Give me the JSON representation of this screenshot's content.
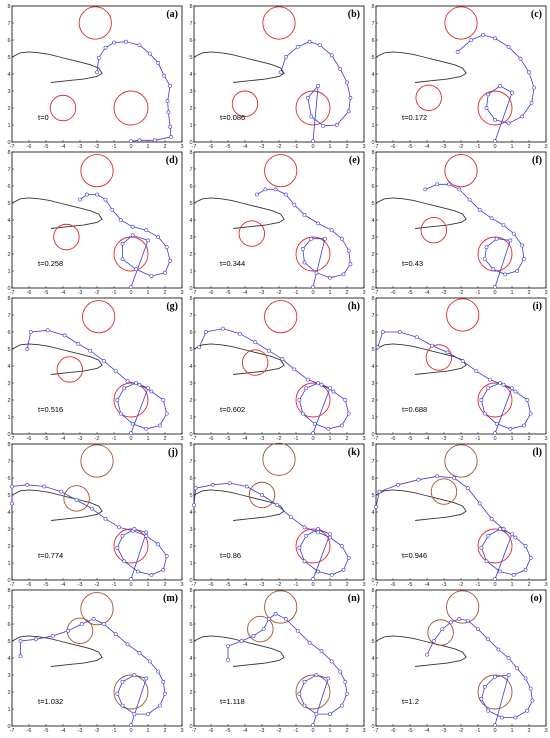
{
  "chart_data": {
    "type": "line",
    "layout": "5 rows x 3 columns small multiples",
    "shared_axes": {
      "xlim": [
        -7,
        3
      ],
      "ylim": [
        0,
        8
      ],
      "xticks": [
        -7,
        -6,
        -5,
        -4,
        -3,
        -2,
        -1,
        0,
        1,
        2,
        3
      ],
      "yticks": [
        0,
        1,
        2,
        3,
        4,
        5,
        6,
        7,
        8
      ],
      "grid": false
    },
    "colors": {
      "chain": "#3a3ad8",
      "obstacle_red": "#e0282a",
      "obstacle_brown": "#a0522d",
      "curve": "#333333",
      "frame": "#000000"
    },
    "target_curve": {
      "x": [
        -7,
        -6.5,
        -6,
        -5.4,
        -4.8,
        -4.2,
        -3.6,
        -3.0,
        -2.4,
        -1.9,
        -1.7,
        -2.0,
        -2.8,
        -3.8,
        -4.7
      ],
      "y": [
        5.0,
        5.25,
        5.3,
        5.25,
        5.15,
        5.0,
        4.85,
        4.7,
        4.55,
        4.35,
        4.05,
        3.85,
        3.7,
        3.6,
        3.5
      ]
    },
    "panels": [
      {
        "label": "(a)",
        "t": "t=0",
        "chain_x": [
          -2.0,
          -1.9,
          -1.5,
          -1.0,
          -0.3,
          0.5,
          1.1,
          1.6,
          1.95,
          2.3,
          2.15,
          2.2,
          2.3,
          2.35,
          1.4,
          0.5,
          0.0
        ],
        "chain_y": [
          4.1,
          4.95,
          5.55,
          5.85,
          5.9,
          5.7,
          5.2,
          4.65,
          3.9,
          3.3,
          2.4,
          1.75,
          0.9,
          0.3,
          0.1,
          0.1,
          0.05
        ],
        "circles": [
          {
            "x": -2.1,
            "y": 7.0,
            "r": 0.95,
            "c": "red"
          },
          {
            "x": -4.0,
            "y": 2.0,
            "r": 0.75,
            "c": "red"
          },
          {
            "x": 0.0,
            "y": 2.0,
            "r": 1.0,
            "c": "red"
          }
        ]
      },
      {
        "label": "(b)",
        "t": "t=0.086",
        "chain_x": [
          -1.9,
          -1.6,
          -0.9,
          -0.2,
          0.4,
          1.1,
          1.6,
          2.0,
          2.2,
          2.1,
          1.4,
          0.6,
          -0.1,
          -0.3,
          0.3,
          0.0
        ],
        "chain_y": [
          4.1,
          5.0,
          5.6,
          5.9,
          5.7,
          5.1,
          4.3,
          3.5,
          2.6,
          1.8,
          1.0,
          0.95,
          1.5,
          2.6,
          3.3,
          0.05
        ],
        "circles": [
          {
            "x": -2.0,
            "y": 7.0,
            "r": 0.95,
            "c": "red"
          },
          {
            "x": -4.0,
            "y": 2.25,
            "r": 0.75,
            "c": "red"
          },
          {
            "x": 0.0,
            "y": 2.0,
            "r": 1.0,
            "c": "red"
          }
        ]
      },
      {
        "label": "(c)",
        "t": "t=0.172",
        "chain_x": [
          -2.2,
          -1.4,
          -0.7,
          0.0,
          0.8,
          1.5,
          2.0,
          2.3,
          2.15,
          1.6,
          0.8,
          0.0,
          -0.5,
          -0.4,
          0.3,
          1.0,
          0.0
        ],
        "chain_y": [
          5.3,
          6.0,
          6.3,
          6.1,
          5.6,
          4.9,
          4.1,
          3.2,
          2.3,
          1.5,
          1.1,
          1.3,
          2.0,
          2.8,
          3.3,
          2.9,
          0.05
        ],
        "circles": [
          {
            "x": -2.0,
            "y": 7.0,
            "r": 0.95,
            "c": "red"
          },
          {
            "x": -3.9,
            "y": 2.6,
            "r": 0.75,
            "c": "red"
          },
          {
            "x": 0.0,
            "y": 2.0,
            "r": 1.0,
            "c": "red"
          }
        ]
      },
      {
        "label": "(d)",
        "t": "t=0.258",
        "chain_x": [
          -3.0,
          -2.6,
          -2.0,
          -1.5,
          -1.1,
          -0.6,
          0.1,
          0.9,
          1.6,
          2.1,
          2.3,
          2.0,
          1.2,
          0.3,
          -0.5,
          -0.5,
          0.1,
          1.0,
          0.0
        ],
        "chain_y": [
          5.2,
          5.5,
          5.5,
          5.2,
          4.6,
          4.0,
          3.6,
          3.4,
          3.0,
          2.4,
          1.6,
          0.9,
          0.7,
          1.1,
          1.7,
          2.6,
          3.1,
          2.8,
          0.05
        ],
        "circles": [
          {
            "x": -2.0,
            "y": 6.9,
            "r": 0.95,
            "c": "red"
          },
          {
            "x": -3.8,
            "y": 3.0,
            "r": 0.75,
            "c": "red"
          },
          {
            "x": 0.0,
            "y": 2.0,
            "r": 1.0,
            "c": "red"
          }
        ]
      },
      {
        "label": "(e)",
        "t": "t=0.344",
        "chain_x": [
          -3.3,
          -2.8,
          -2.2,
          -1.6,
          -1.1,
          -0.5,
          0.3,
          1.1,
          1.7,
          2.1,
          2.2,
          1.8,
          1.0,
          0.2,
          -0.5,
          -0.6,
          -0.1,
          0.7,
          0.0
        ],
        "chain_y": [
          5.5,
          5.8,
          5.8,
          5.5,
          4.9,
          4.3,
          3.8,
          3.4,
          2.9,
          2.2,
          1.4,
          0.8,
          0.6,
          0.9,
          1.5,
          2.3,
          2.9,
          2.9,
          0.05
        ],
        "circles": [
          {
            "x": -1.9,
            "y": 6.9,
            "r": 0.95,
            "c": "red"
          },
          {
            "x": -3.6,
            "y": 3.2,
            "r": 0.75,
            "c": "red"
          },
          {
            "x": 0.0,
            "y": 2.0,
            "r": 1.0,
            "c": "red"
          }
        ]
      },
      {
        "label": "(f)",
        "t": "t=0.43",
        "chain_x": [
          -4.1,
          -3.4,
          -2.7,
          -2.1,
          -1.5,
          -0.9,
          -0.2,
          0.5,
          1.1,
          1.6,
          1.7,
          1.3,
          0.6,
          -0.1,
          -0.6,
          -0.5,
          0.1,
          0.9,
          0.0
        ],
        "chain_y": [
          5.8,
          6.1,
          6.1,
          5.8,
          5.2,
          4.6,
          4.1,
          3.7,
          3.2,
          2.5,
          1.7,
          1.0,
          0.8,
          1.1,
          1.7,
          2.4,
          2.9,
          2.8,
          0.05
        ],
        "circles": [
          {
            "x": -2.0,
            "y": 6.9,
            "r": 0.95,
            "c": "red"
          },
          {
            "x": -3.6,
            "y": 3.4,
            "r": 0.75,
            "c": "red"
          },
          {
            "x": 0.0,
            "y": 2.0,
            "r": 1.0,
            "c": "red"
          }
        ]
      },
      {
        "label": "(g)",
        "t": "t=0.516",
        "chain_x": [
          -6.1,
          -5.9,
          -4.9,
          -3.9,
          -3.1,
          -2.4,
          -1.6,
          -0.9,
          -0.2,
          0.5,
          1.2,
          1.9,
          2.1,
          1.7,
          0.9,
          0.1,
          -0.6,
          -0.8,
          -0.4,
          0.3,
          1.0,
          0.0
        ],
        "chain_y": [
          5.0,
          6.0,
          6.1,
          5.8,
          5.3,
          4.9,
          4.3,
          3.7,
          3.1,
          2.9,
          2.5,
          2.0,
          1.2,
          0.5,
          0.3,
          0.6,
          1.2,
          2.0,
          2.7,
          3.0,
          2.7,
          0.05
        ],
        "circles": [
          {
            "x": -1.9,
            "y": 6.9,
            "r": 0.95,
            "c": "red"
          },
          {
            "x": -3.6,
            "y": 3.8,
            "r": 0.75,
            "c": "red"
          },
          {
            "x": 0.0,
            "y": 2.0,
            "r": 1.0,
            "c": "red"
          }
        ]
      },
      {
        "label": "(h)",
        "t": "t=0.602",
        "chain_x": [
          -6.7,
          -6.3,
          -5.3,
          -4.3,
          -3.4,
          -2.6,
          -1.8,
          -1.1,
          -0.3,
          0.5,
          1.2,
          1.9,
          2.1,
          1.7,
          0.9,
          0.1,
          -0.6,
          -0.8,
          -0.4,
          0.3,
          1.0,
          0.0
        ],
        "chain_y": [
          5.1,
          6.0,
          6.2,
          5.9,
          5.4,
          4.9,
          4.4,
          3.8,
          3.2,
          2.9,
          2.5,
          2.0,
          1.2,
          0.5,
          0.3,
          0.6,
          1.2,
          2.0,
          2.7,
          3.0,
          2.7,
          0.05
        ],
        "circles": [
          {
            "x": -1.9,
            "y": 6.9,
            "r": 0.95,
            "c": "red"
          },
          {
            "x": -3.4,
            "y": 4.2,
            "r": 0.75,
            "c": "red"
          },
          {
            "x": 0.0,
            "y": 2.0,
            "r": 1.0,
            "c": "red"
          }
        ]
      },
      {
        "label": "(i)",
        "t": "t=0.688",
        "chain_x": [
          -6.9,
          -6.6,
          -5.6,
          -4.6,
          -3.7,
          -2.8,
          -1.9,
          -1.1,
          -0.3,
          0.5,
          1.2,
          1.9,
          2.1,
          1.7,
          0.9,
          0.1,
          -0.6,
          -0.8,
          -0.4,
          0.3,
          1.0,
          0.0
        ],
        "chain_y": [
          5.1,
          6.0,
          6.0,
          5.7,
          5.2,
          4.8,
          4.3,
          3.7,
          3.2,
          2.9,
          2.5,
          2.0,
          1.2,
          0.5,
          0.3,
          0.6,
          1.2,
          2.0,
          2.7,
          3.0,
          2.7,
          0.05
        ],
        "circles": [
          {
            "x": -1.9,
            "y": 7.0,
            "r": 0.95,
            "c": "red"
          },
          {
            "x": -3.3,
            "y": 4.5,
            "r": 0.75,
            "c": "red"
          },
          {
            "x": 0.0,
            "y": 2.0,
            "r": 1.0,
            "c": "red"
          }
        ]
      },
      {
        "label": "(j)",
        "t": "t=0.774",
        "chain_x": [
          -7.0,
          -7.0,
          -6.1,
          -5.1,
          -4.1,
          -3.2,
          -2.3,
          -1.5,
          -0.7,
          0.1,
          0.9,
          1.6,
          2.1,
          1.9,
          1.2,
          0.4,
          -0.4,
          -0.8,
          -0.5,
          0.2,
          0.9,
          0.0
        ],
        "chain_y": [
          4.5,
          5.5,
          5.6,
          5.5,
          5.2,
          4.7,
          4.2,
          3.6,
          3.1,
          2.9,
          2.6,
          2.1,
          1.4,
          0.6,
          0.3,
          0.5,
          1.1,
          1.9,
          2.6,
          3.0,
          2.8,
          0.05
        ],
        "circles": [
          {
            "x": -2.0,
            "y": 7.0,
            "r": 0.95,
            "c": "brown"
          },
          {
            "x": -3.2,
            "y": 4.8,
            "r": 0.75,
            "c": "brown"
          },
          {
            "x": 0.0,
            "y": 2.0,
            "r": 1.0,
            "c": "red"
          }
        ]
      },
      {
        "label": "(k)",
        "t": "t=0.86",
        "chain_x": [
          -7.0,
          -6.9,
          -5.9,
          -4.9,
          -3.9,
          -3.0,
          -2.1,
          -1.3,
          -0.5,
          0.3,
          1.0,
          1.7,
          2.1,
          1.8,
          1.1,
          0.3,
          -0.5,
          -0.8,
          -0.4,
          0.3,
          1.0,
          0.0
        ],
        "chain_y": [
          4.4,
          5.4,
          5.6,
          5.7,
          5.5,
          5.0,
          4.4,
          3.7,
          3.1,
          2.8,
          2.5,
          2.0,
          1.3,
          0.6,
          0.3,
          0.5,
          1.1,
          1.9,
          2.6,
          3.0,
          2.7,
          0.05
        ],
        "circles": [
          {
            "x": -2.0,
            "y": 7.1,
            "r": 0.95,
            "c": "brown"
          },
          {
            "x": -3.0,
            "y": 5.0,
            "r": 0.75,
            "c": "brown"
          },
          {
            "x": 0.0,
            "y": 2.0,
            "r": 1.0,
            "c": "red"
          }
        ]
      },
      {
        "label": "(l)",
        "t": "t=0.946",
        "chain_x": [
          -7.0,
          -6.8,
          -5.7,
          -4.5,
          -3.4,
          -2.4,
          -1.6,
          -0.9,
          -0.2,
          0.5,
          1.2,
          1.8,
          2.1,
          1.8,
          1.1,
          0.3,
          -0.5,
          -0.8,
          -0.4,
          0.3,
          1.0,
          0.0
        ],
        "chain_y": [
          4.3,
          5.2,
          5.6,
          5.9,
          6.1,
          6.0,
          5.4,
          4.5,
          3.6,
          3.0,
          2.5,
          2.0,
          1.3,
          0.6,
          0.3,
          0.5,
          1.1,
          1.9,
          2.6,
          3.0,
          2.7,
          0.05
        ],
        "circles": [
          {
            "x": -2.0,
            "y": 7.0,
            "r": 0.95,
            "c": "brown"
          },
          {
            "x": -3.0,
            "y": 5.2,
            "r": 0.75,
            "c": "brown"
          },
          {
            "x": 0.0,
            "y": 2.0,
            "r": 1.0,
            "c": "red"
          }
        ]
      },
      {
        "label": "(m)",
        "t": "t=1.032",
        "chain_x": [
          -6.5,
          -6.5,
          -5.6,
          -4.6,
          -3.7,
          -2.9,
          -2.2,
          -1.6,
          -0.9,
          -0.2,
          0.5,
          1.1,
          1.6,
          1.9,
          2.0,
          1.7,
          1.0,
          0.2,
          -0.5,
          -0.8,
          -0.5,
          0.2,
          0.9,
          0.0
        ],
        "chain_y": [
          4.1,
          5.0,
          5.1,
          5.3,
          5.6,
          6.0,
          6.3,
          6.0,
          5.4,
          4.8,
          4.3,
          3.8,
          3.2,
          2.6,
          1.9,
          1.2,
          0.7,
          0.7,
          1.2,
          1.9,
          2.6,
          3.0,
          2.8,
          0.05
        ],
        "circles": [
          {
            "x": -2.0,
            "y": 6.9,
            "r": 0.95,
            "c": "brown"
          },
          {
            "x": -3.0,
            "y": 5.6,
            "r": 0.75,
            "c": "brown"
          },
          {
            "x": 0.0,
            "y": 2.0,
            "r": 1.0,
            "c": "brown"
          }
        ]
      },
      {
        "label": "(n)",
        "t": "t=1.118",
        "chain_x": [
          -5.0,
          -5.0,
          -4.2,
          -3.5,
          -2.9,
          -2.6,
          -2.2,
          -1.6,
          -0.9,
          -0.2,
          0.5,
          1.1,
          1.6,
          1.9,
          2.0,
          1.7,
          1.0,
          0.2,
          -0.5,
          -0.8,
          -0.5,
          0.2,
          0.9,
          0.0
        ],
        "chain_y": [
          3.9,
          4.7,
          5.0,
          5.3,
          5.7,
          6.3,
          6.6,
          6.3,
          5.6,
          4.9,
          4.4,
          3.8,
          3.2,
          2.6,
          1.9,
          1.2,
          0.7,
          0.7,
          1.2,
          1.9,
          2.6,
          3.0,
          2.8,
          0.05
        ],
        "circles": [
          {
            "x": -1.9,
            "y": 7.0,
            "r": 0.95,
            "c": "brown"
          },
          {
            "x": -3.1,
            "y": 5.7,
            "r": 0.75,
            "c": "brown"
          },
          {
            "x": 0.0,
            "y": 2.0,
            "r": 1.0,
            "c": "brown"
          }
        ]
      },
      {
        "label": "(o)",
        "t": "t=1.2",
        "chain_x": [
          -4.0,
          -3.6,
          -3.1,
          -2.6,
          -2.1,
          -1.6,
          -1.0,
          -0.4,
          0.2,
          0.8,
          1.3,
          1.8,
          2.1,
          2.2,
          1.9,
          1.2,
          0.4,
          -0.4,
          -0.8,
          -0.6,
          0.0,
          0.8,
          0.0
        ],
        "chain_y": [
          4.2,
          5.0,
          5.7,
          6.1,
          6.3,
          6.2,
          5.7,
          5.1,
          4.5,
          4.0,
          3.4,
          2.8,
          2.2,
          1.5,
          0.9,
          0.5,
          0.5,
          0.9,
          1.6,
          2.3,
          2.9,
          3.0,
          0.05
        ],
        "circles": [
          {
            "x": -1.9,
            "y": 7.0,
            "r": 0.95,
            "c": "brown"
          },
          {
            "x": -3.2,
            "y": 5.5,
            "r": 0.75,
            "c": "brown"
          },
          {
            "x": 0.0,
            "y": 2.0,
            "r": 1.0,
            "c": "brown"
          }
        ]
      }
    ]
  }
}
